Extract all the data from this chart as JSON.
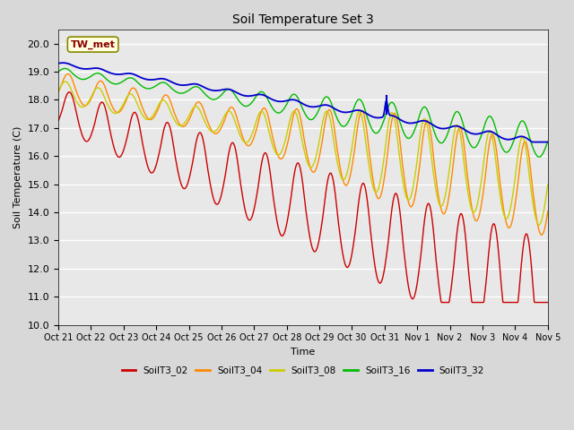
{
  "title": "Soil Temperature Set 3",
  "xlabel": "Time",
  "ylabel": "Soil Temperature (C)",
  "ylim": [
    10.0,
    20.5
  ],
  "yticks": [
    10.0,
    11.0,
    12.0,
    13.0,
    14.0,
    15.0,
    16.0,
    17.0,
    18.0,
    19.0,
    20.0
  ],
  "fig_bg_color": "#d8d8d8",
  "ax_bg_color": "#e8e8e8",
  "series_colors": {
    "SoilT3_02": "#cc0000",
    "SoilT3_04": "#ff8800",
    "SoilT3_08": "#cccc00",
    "SoilT3_16": "#00bb00",
    "SoilT3_32": "#0000cc"
  },
  "annotation_label": "TW_met",
  "num_points": 1440,
  "end_day": 15.0,
  "xtick_days": [
    0,
    1,
    2,
    3,
    4,
    5,
    6,
    7,
    8,
    9,
    10,
    11,
    12,
    13,
    14,
    15
  ],
  "xtick_labels": [
    "Oct 21",
    "Oct 22",
    "Oct 23",
    "Oct 24",
    "Oct 25",
    "Oct 26",
    "Oct 27",
    "Oct 28",
    "Oct 29",
    "Oct 30",
    "Oct 31",
    "Nov 1",
    "Nov 2",
    "Nov 3",
    "Nov 4",
    "Nov 5"
  ]
}
